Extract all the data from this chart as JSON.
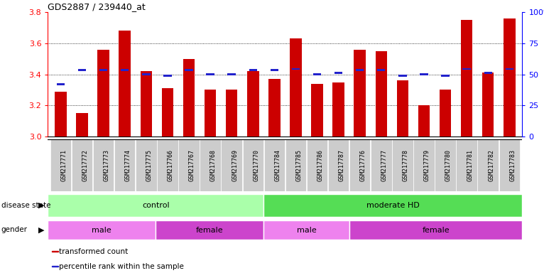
{
  "title": "GDS2887 / 239440_at",
  "samples": [
    "GSM217771",
    "GSM217772",
    "GSM217773",
    "GSM217774",
    "GSM217775",
    "GSM217766",
    "GSM217767",
    "GSM217768",
    "GSM217769",
    "GSM217770",
    "GSM217784",
    "GSM217785",
    "GSM217786",
    "GSM217787",
    "GSM217776",
    "GSM217777",
    "GSM217778",
    "GSM217779",
    "GSM217780",
    "GSM217781",
    "GSM217782",
    "GSM217783"
  ],
  "bar_values": [
    3.29,
    3.15,
    3.56,
    3.68,
    3.42,
    3.31,
    3.5,
    3.3,
    3.3,
    3.42,
    3.37,
    3.63,
    3.34,
    3.35,
    3.56,
    3.55,
    3.36,
    3.2,
    3.3,
    3.75,
    3.41,
    3.76
  ],
  "percentile_values": [
    3.335,
    3.43,
    3.43,
    3.43,
    3.4,
    3.39,
    3.43,
    3.4,
    3.4,
    3.43,
    3.43,
    3.435,
    3.4,
    3.41,
    3.43,
    3.43,
    3.39,
    3.4,
    3.39,
    3.435,
    3.41,
    3.435
  ],
  "ylim": [
    3.0,
    3.8
  ],
  "yticks": [
    3.0,
    3.2,
    3.4,
    3.6,
    3.8
  ],
  "y2ticks": [
    0,
    25,
    50,
    75,
    100
  ],
  "bar_color": "#CC0000",
  "percentile_color": "#2222CC",
  "disease_groups": [
    {
      "label": "control",
      "start": 0,
      "end": 10,
      "color": "#AAFFAA"
    },
    {
      "label": "moderate HD",
      "start": 10,
      "end": 22,
      "color": "#55DD55"
    }
  ],
  "gender_groups": [
    {
      "label": "male",
      "start": 0,
      "end": 5,
      "color": "#EE82EE"
    },
    {
      "label": "female",
      "start": 5,
      "end": 10,
      "color": "#CC44CC"
    },
    {
      "label": "male",
      "start": 10,
      "end": 14,
      "color": "#EE82EE"
    },
    {
      "label": "female",
      "start": 14,
      "end": 22,
      "color": "#CC44CC"
    }
  ],
  "legend_items": [
    {
      "label": "transformed count",
      "color": "#CC0000"
    },
    {
      "label": "percentile rank within the sample",
      "color": "#2222CC"
    }
  ],
  "tick_bg_color": "#CCCCCC",
  "xlabel_fontsize": 6.0,
  "bar_width": 0.55
}
